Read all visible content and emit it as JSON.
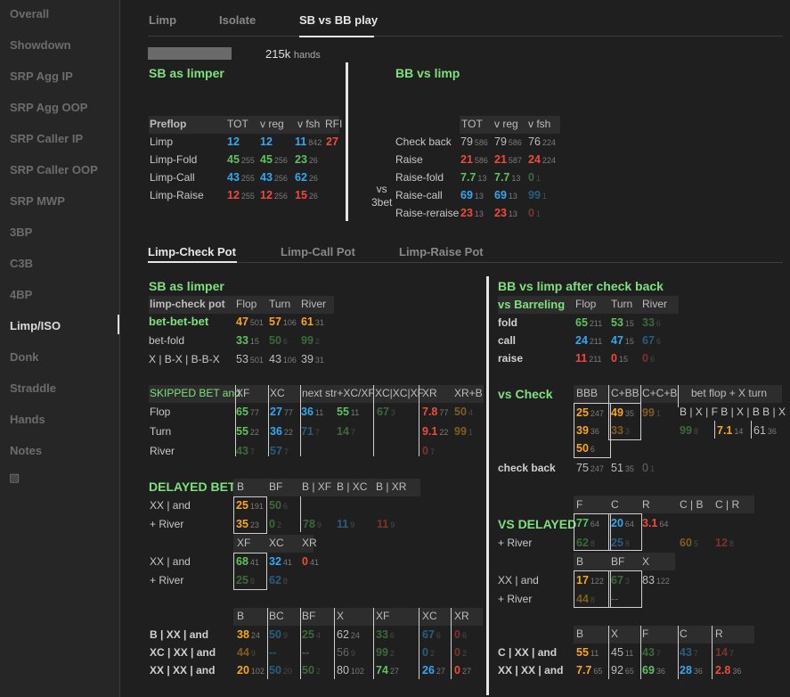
{
  "sidebar": [
    "Overall",
    "Showdown",
    "SRP Agg IP",
    "SRP Agg OOP",
    "SRP Caller IP",
    "SRP Caller OOP",
    "SRP MWP",
    "3BP",
    "C3B",
    "4BP",
    "Limp/ISO",
    "Donk",
    "Straddle",
    "Hands",
    "Notes"
  ],
  "active_nav": "Limp/ISO",
  "top_tabs": [
    "Limp",
    "Isolate",
    "SB vs BB play"
  ],
  "hands_count": "215k",
  "hands_label": "hands",
  "sb_limper_title": "SB as limper",
  "bb_vs_limp_title": "BB vs limp",
  "preflop": {
    "head": [
      "Preflop",
      "TOT",
      "v reg",
      "v fsh",
      "RFI"
    ],
    "rows": [
      {
        "label": "Limp",
        "cells": [
          [
            "12",
            "",
            "blue"
          ],
          [
            "12",
            "",
            "blue"
          ],
          [
            "11",
            "842",
            "blue"
          ],
          [
            "27",
            "",
            "red"
          ]
        ]
      },
      {
        "label": "Limp-Fold",
        "cells": [
          [
            "45",
            "255",
            "green"
          ],
          [
            "45",
            "256",
            "green"
          ],
          [
            "23",
            "26",
            "green"
          ]
        ]
      },
      {
        "label": "Limp-Call",
        "cells": [
          [
            "43",
            "255",
            "blue"
          ],
          [
            "43",
            "256",
            "blue"
          ],
          [
            "62",
            "26",
            "blue"
          ]
        ]
      },
      {
        "label": "Limp-Raise",
        "cells": [
          [
            "12",
            "255",
            "red"
          ],
          [
            "12",
            "256",
            "red"
          ],
          [
            "15",
            "26",
            "red"
          ]
        ]
      }
    ]
  },
  "bbvslimp": {
    "head": [
      "TOT",
      "v reg",
      "v fsh"
    ],
    "vs3bet": "vs\n3bet",
    "rows": [
      {
        "label": "Check back",
        "cells": [
          [
            "79",
            "586",
            "gray"
          ],
          [
            "79",
            "586",
            "gray"
          ],
          [
            "76",
            "224",
            "gray"
          ]
        ]
      },
      {
        "label": "Raise",
        "cells": [
          [
            "21",
            "586",
            "red"
          ],
          [
            "21",
            "587",
            "red"
          ],
          [
            "24",
            "224",
            "red"
          ]
        ]
      },
      {
        "label": "Raise-fold",
        "cells": [
          [
            "7.7",
            "13",
            "green"
          ],
          [
            "7.7",
            "13",
            "green"
          ],
          [
            "0",
            "1",
            "green"
          ]
        ]
      },
      {
        "label": "Raise-call",
        "cells": [
          [
            "69",
            "13",
            "blue"
          ],
          [
            "69",
            "13",
            "blue"
          ],
          [
            "99",
            "1",
            "blue"
          ]
        ]
      },
      {
        "label": "Raise-reraise",
        "cells": [
          [
            "23",
            "13",
            "red"
          ],
          [
            "23",
            "13",
            "red"
          ],
          [
            "0",
            "1",
            "red"
          ]
        ]
      }
    ]
  },
  "pot_tabs": [
    "Limp-Check Pot",
    "Limp-Call Pot",
    "Limp-Raise Pot"
  ],
  "left": {
    "title": "SB as limper",
    "lcp_head": [
      "limp-check pot",
      "Flop",
      "Turn",
      "River"
    ],
    "bbb": "bet-bet-bet",
    "bbb_vals": [
      [
        "47",
        "501",
        "orange"
      ],
      [
        "57",
        "106",
        "orange"
      ],
      [
        "61",
        "31",
        "orange"
      ]
    ],
    "betfold": "bet-fold",
    "betfold_vals": [
      [
        "33",
        "15",
        "green"
      ],
      [
        "50",
        "6",
        "green"
      ],
      [
        "99",
        "2",
        "green"
      ]
    ],
    "xbx": "X | B-X | B-B-X",
    "xbx_vals": [
      [
        "53",
        "501",
        "gray"
      ],
      [
        "43",
        "106",
        "gray"
      ],
      [
        "39",
        "31",
        "gray"
      ]
    ],
    "skipped_head": [
      "SKIPPED BET and",
      "XF",
      "XC",
      "next str+XC/XF",
      "XC|XC|XF",
      "XR",
      "XR+B"
    ],
    "skipped_rows": [
      {
        "label": "Flop",
        "cells": [
          [
            "65",
            "77",
            "green"
          ],
          [
            "27",
            "77",
            "blue"
          ],
          [
            "36",
            "11",
            "blue"
          ],
          [
            "55",
            "11",
            "green"
          ],
          [
            "67",
            "3",
            "green"
          ],
          [
            "7.8",
            "77",
            "red"
          ],
          [
            "50",
            "4",
            "orange"
          ]
        ]
      },
      {
        "label": "Turn",
        "cells": [
          [
            "55",
            "22",
            "green"
          ],
          [
            "36",
            "22",
            "blue"
          ],
          [
            "71",
            "7",
            "blue"
          ],
          [
            "14",
            "7",
            "green"
          ],
          [
            "9.1",
            "22",
            "red"
          ],
          [
            "99",
            "1",
            "orange"
          ]
        ]
      },
      {
        "label": "River",
        "cells": [
          [
            "43",
            "7",
            "green"
          ],
          [
            "57",
            "7",
            "blue"
          ],
          [
            "0",
            "7",
            "red"
          ]
        ]
      }
    ],
    "delayed_title": "DELAYED BET",
    "delayed_head": [
      "B",
      "BF",
      "B | XF",
      "B | XC",
      "B | XR"
    ],
    "d_xx": "XX | and",
    "d_river": "+ River",
    "d_row1": [
      [
        "25",
        "191",
        "orange"
      ],
      [
        "50",
        "6",
        "green"
      ]
    ],
    "d_row2": [
      [
        "35",
        "23",
        "orange"
      ],
      [
        "0",
        "2",
        "green"
      ],
      [
        "78",
        "9",
        "green"
      ],
      [
        "11",
        "9",
        "blue"
      ],
      [
        "11",
        "9",
        "red"
      ]
    ],
    "d2_head": [
      "XF",
      "XC",
      "XR"
    ],
    "d2_xx": "XX | and",
    "d2_river": "+ River",
    "d2_row1": [
      [
        "68",
        "41",
        "green"
      ],
      [
        "32",
        "41",
        "blue"
      ],
      [
        "0",
        "41",
        "red"
      ]
    ],
    "d2_row2": [
      [
        "25",
        "8",
        "green"
      ],
      [
        "62",
        "8",
        "blue"
      ]
    ],
    "bot_head": [
      "B",
      "BC",
      "BF",
      "X",
      "XF",
      "XC",
      "XR"
    ],
    "bot_rows": [
      {
        "label": "B | XX | and",
        "cells": [
          [
            "38",
            "24",
            "orange"
          ],
          [
            "50",
            "9",
            "blue"
          ],
          [
            "25",
            "4",
            "green"
          ],
          [
            "62",
            "24",
            "gray"
          ],
          [
            "33",
            "6",
            "green"
          ],
          [
            "67",
            "6",
            "blue"
          ],
          [
            "0",
            "6",
            "red"
          ]
        ]
      },
      {
        "label": "XC | XX | and",
        "cells": [
          [
            "44",
            "9",
            "orange"
          ],
          [
            "--",
            "",
            "blue"
          ],
          [
            "--",
            "",
            "green"
          ],
          [
            "56",
            "9",
            "gray"
          ],
          [
            "99",
            "2",
            "green"
          ],
          [
            "0",
            "2",
            "blue"
          ],
          [
            "0",
            "2",
            "red"
          ]
        ]
      },
      {
        "label": "XX | XX | and",
        "cells": [
          [
            "20",
            "102",
            "orange"
          ],
          [
            "50",
            "20",
            "blue"
          ],
          [
            "50",
            "2",
            "green"
          ],
          [
            "80",
            "102",
            "gray"
          ],
          [
            "74",
            "27",
            "green"
          ],
          [
            "26",
            "27",
            "blue"
          ],
          [
            "0",
            "27",
            "red"
          ]
        ]
      }
    ]
  },
  "right": {
    "title": "BB vs limp after check back",
    "barreling": "vs Barreling",
    "bar_head": [
      "Flop",
      "Turn",
      "River"
    ],
    "bar_rows": [
      {
        "label": "fold",
        "cells": [
          [
            "65",
            "211",
            "green"
          ],
          [
            "53",
            "15",
            "green"
          ],
          [
            "33",
            "6",
            "green"
          ]
        ]
      },
      {
        "label": "call",
        "cells": [
          [
            "24",
            "211",
            "blue"
          ],
          [
            "47",
            "15",
            "blue"
          ],
          [
            "67",
            "6",
            "blue"
          ]
        ]
      },
      {
        "label": "raise",
        "cells": [
          [
            "11",
            "211",
            "red"
          ],
          [
            "0",
            "15",
            "red"
          ],
          [
            "0",
            "6",
            "red"
          ]
        ]
      }
    ],
    "vscheck": "vs Check",
    "chk_head": [
      "BBB",
      "C+BB",
      "C+C+B",
      "bet flop + X turn"
    ],
    "chk_sub": "B | X | F B | X | B B | X",
    "chk_r1": [
      [
        "25",
        "247",
        "orange"
      ],
      [
        "49",
        "35",
        "orange"
      ],
      [
        "99",
        "1",
        "orange"
      ]
    ],
    "chk_r2": [
      [
        "39",
        "36",
        "orange"
      ],
      [
        "33",
        "3",
        "orange"
      ],
      [
        "99",
        "8",
        "green"
      ],
      [
        "7.1",
        "14",
        "orange"
      ],
      [
        "61",
        "36",
        "gray"
      ]
    ],
    "chk_r3": [
      [
        "50",
        "6",
        "orange"
      ]
    ],
    "checkback": "check back",
    "checkback_vals": [
      [
        "75",
        "247",
        "gray"
      ],
      [
        "51",
        "35",
        "gray"
      ],
      [
        "0",
        "1",
        "gray"
      ]
    ],
    "vsdelayed": "VS DELAYED",
    "vd_head": [
      "F",
      "C",
      "R",
      "C | B",
      "C | R"
    ],
    "vd_r1": [
      [
        "77",
        "64",
        "green"
      ],
      [
        "20",
        "64",
        "blue"
      ],
      [
        "3.1",
        "64",
        "red"
      ]
    ],
    "vd_river": "+ River",
    "vd_r2": [
      [
        "62",
        "8",
        "green"
      ],
      [
        "25",
        "8",
        "blue"
      ],
      [
        "60",
        "5",
        "orange"
      ],
      [
        "12",
        "8",
        "red"
      ]
    ],
    "vd2_head": [
      "B",
      "BF",
      "X"
    ],
    "vd2_xx": "XX | and",
    "vd2_river": "+ River",
    "vd2_r1": [
      [
        "17",
        "122",
        "orange"
      ],
      [
        "67",
        "3",
        "green"
      ],
      [
        "83",
        "122",
        "gray"
      ]
    ],
    "vd2_r2": [
      [
        "44",
        "8",
        "orange"
      ],
      [
        "--",
        "",
        "gray"
      ]
    ],
    "rbot_head": [
      "B",
      "X",
      "F",
      "C",
      "R"
    ],
    "rbot_rows": [
      {
        "label": "C | XX | and",
        "cells": [
          [
            "55",
            "11",
            "orange"
          ],
          [
            "45",
            "11",
            "gray"
          ],
          [
            "43",
            "7",
            "green"
          ],
          [
            "43",
            "7",
            "blue"
          ],
          [
            "14",
            "7",
            "red"
          ]
        ]
      },
      {
        "label": "XX | XX | and",
        "cells": [
          [
            "7.7",
            "65",
            "orange"
          ],
          [
            "92",
            "65",
            "gray"
          ],
          [
            "69",
            "36",
            "green"
          ],
          [
            "28",
            "36",
            "blue"
          ],
          [
            "2.8",
            "36",
            "red"
          ]
        ]
      }
    ]
  }
}
